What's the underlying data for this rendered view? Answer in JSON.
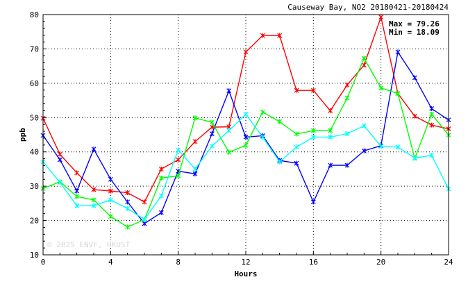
{
  "chart_data": {
    "type": "line",
    "title": "Causeway Bay, NO2 20180421-20180424",
    "xlabel": "Hours",
    "ylabel": "ppb",
    "xlim": [
      0,
      24
    ],
    "ylim": [
      10,
      80
    ],
    "x_ticks": [
      0,
      4,
      8,
      12,
      16,
      20,
      24
    ],
    "y_ticks": [
      10,
      20,
      30,
      40,
      50,
      60,
      70,
      80
    ],
    "grid": true,
    "stats": {
      "max": "Max = 79.26",
      "min": "Min = 18.09"
    },
    "watermark": "© 2025 ENVF, HKUST",
    "x": [
      0,
      1,
      2,
      3,
      4,
      5,
      6,
      7,
      8,
      9,
      10,
      11,
      12,
      13,
      14,
      15,
      16,
      17,
      18,
      19,
      20,
      21,
      22,
      23,
      24
    ],
    "series": [
      {
        "color": "#ff0000",
        "values": [
          49.8,
          39.3,
          33.9,
          29.0,
          28.6,
          28.1,
          25.4,
          35.0,
          37.7,
          43.0,
          47.2,
          47.3,
          69.1,
          73.9,
          73.9,
          57.9,
          57.9,
          52.0,
          59.5,
          65.3,
          79.26,
          57.0,
          50.4,
          47.8,
          46.7
        ]
      },
      {
        "color": "#0000ff",
        "values": [
          44.8,
          37.7,
          28.6,
          40.8,
          32.0,
          25.4,
          19.1,
          22.3,
          34.4,
          33.6,
          45.3,
          57.8,
          44.3,
          44.7,
          37.5,
          36.7,
          25.4,
          36.1,
          36.1,
          40.3,
          41.8,
          69.1,
          61.6,
          52.6,
          49.3
        ]
      },
      {
        "color": "#00ff00",
        "values": [
          29.3,
          31.3,
          27.0,
          26.0,
          21.2,
          18.09,
          20.3,
          32.4,
          33.0,
          49.9,
          48.6,
          39.9,
          41.9,
          51.6,
          48.8,
          45.2,
          46.2,
          46.2,
          55.7,
          67.3,
          58.6,
          57.0,
          38.1,
          51.0,
          44.9
        ]
      },
      {
        "color": "#00ffff",
        "values": [
          37.1,
          31.1,
          24.3,
          24.3,
          26.0,
          23.5,
          20.3,
          27.2,
          40.6,
          35.0,
          41.7,
          46.2,
          51.0,
          44.3,
          37.1,
          41.4,
          44.3,
          44.3,
          45.3,
          47.6,
          41.6,
          41.4,
          38.2,
          39.0,
          29.2
        ]
      }
    ]
  }
}
